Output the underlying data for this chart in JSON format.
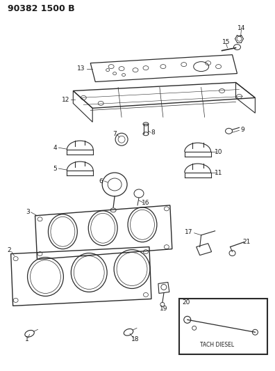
{
  "title": "90382 1500 B",
  "bg_color": "#ffffff",
  "line_color": "#2a2a2a",
  "label_color": "#1a1a1a",
  "title_fontsize": 9,
  "label_fontsize": 6.5,
  "figsize": [
    3.96,
    5.33
  ],
  "dpi": 100,
  "tach_label": "TACH DIESEL"
}
